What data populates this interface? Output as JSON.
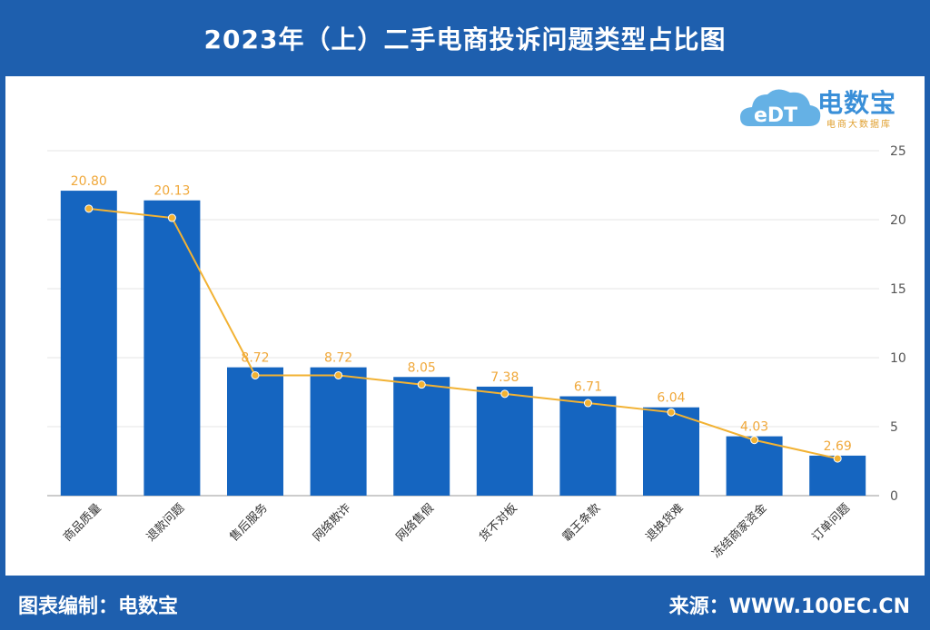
{
  "header": {
    "title": "2023年（上）二手电商投诉问题类型占比图"
  },
  "logo": {
    "name": "电数宝",
    "subtitle": "电商大数据库",
    "badge": "eDT"
  },
  "footer": {
    "left": "图表编制：电数宝",
    "right": "来源：WWW.100EC.CN"
  },
  "colors": {
    "frame": "#1e5fae",
    "bar": "#1565c0",
    "line": "#f2b233",
    "label": "#f0a83a"
  },
  "chart_data": {
    "type": "bar",
    "title": "2023年（上）二手电商投诉问题类型占比图",
    "categories": [
      "商品质量",
      "退款问题",
      "售后服务",
      "网络欺诈",
      "网络售假",
      "货不对板",
      "霸王条款",
      "退换货难",
      "冻结商家资金",
      "订单问题"
    ],
    "series": [
      {
        "type": "bar",
        "values": [
          22.1,
          21.4,
          9.3,
          9.3,
          8.6,
          7.9,
          7.2,
          6.4,
          4.3,
          2.9
        ]
      },
      {
        "type": "line",
        "values": [
          20.8,
          20.13,
          8.72,
          8.72,
          8.05,
          7.38,
          6.71,
          6.04,
          4.03,
          2.69
        ]
      }
    ],
    "data_labels": [
      "20.80",
      "20.13",
      "8.72",
      "8.72",
      "8.05",
      "7.38",
      "6.71",
      "6.04",
      "4.03",
      "2.69"
    ],
    "yticks": [
      "0",
      "5",
      "10",
      "15",
      "20",
      "25"
    ],
    "ylim": [
      0,
      25
    ],
    "y_axis_side": "right",
    "grid": true,
    "xlabel_rotation": -45
  }
}
